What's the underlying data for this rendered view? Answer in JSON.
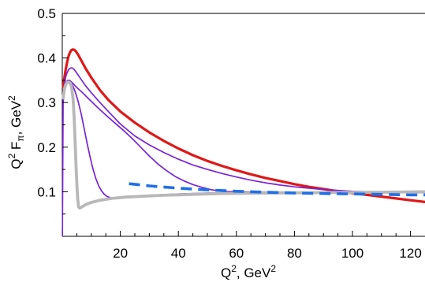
{
  "chart_data": {
    "type": "line",
    "title": "",
    "xlabel": {
      "base": "Q",
      "sup": "2",
      "rest": ", GeV",
      "unit_sup": "2"
    },
    "ylabel": {
      "base": "Q",
      "sup": "2",
      "f": " F",
      "sub": "π",
      "rest": ", GeV",
      "unit_sup": "2"
    },
    "xlim": [
      0,
      125
    ],
    "ylim": [
      0,
      0.5
    ],
    "x_ticks": [
      20,
      40,
      60,
      80,
      100,
      120
    ],
    "y_ticks": [
      0.1,
      0.2,
      0.3,
      0.4,
      0.5
    ],
    "x_tick_labels": [
      "20",
      "40",
      "60",
      "80",
      "100",
      "120"
    ],
    "y_tick_labels": [
      "0.1",
      "0.2",
      "0.3",
      "0.4",
      "0.5"
    ],
    "grid": false,
    "legend": "none",
    "series": [
      {
        "color": "#e01818",
        "width": 3.2,
        "dash": "",
        "x": [
          0.3,
          0.7,
          1.2,
          1.7,
          2.2,
          2.7,
          3.2,
          3.7,
          4.2,
          4.8,
          5.5,
          6.5,
          8,
          10,
          13,
          16,
          20,
          25,
          30,
          35,
          40,
          45,
          50,
          55,
          60,
          65,
          70,
          75,
          80,
          85,
          90,
          95,
          100,
          105,
          110,
          115,
          120,
          125
        ],
        "y": [
          0.335,
          0.355,
          0.375,
          0.392,
          0.405,
          0.413,
          0.418,
          0.419,
          0.418,
          0.414,
          0.407,
          0.395,
          0.377,
          0.356,
          0.328,
          0.305,
          0.28,
          0.255,
          0.233,
          0.214,
          0.197,
          0.182,
          0.169,
          0.158,
          0.148,
          0.139,
          0.131,
          0.124,
          0.117,
          0.111,
          0.106,
          0.101,
          0.097,
          0.093,
          0.089,
          0.085,
          0.081,
          0.077
        ]
      },
      {
        "color": "#7a22d6",
        "width": 1.7,
        "dash": "",
        "x": [
          0.3,
          0.7,
          1.2,
          1.7,
          2.2,
          2.7,
          3.3,
          4,
          5,
          6.5,
          8,
          10,
          13,
          16,
          20,
          25,
          30,
          35,
          40,
          45,
          50,
          55,
          60,
          65,
          70,
          75,
          80,
          85,
          90,
          95,
          100,
          110,
          120,
          125
        ],
        "y": [
          0.31,
          0.34,
          0.358,
          0.368,
          0.374,
          0.377,
          0.378,
          0.375,
          0.366,
          0.352,
          0.338,
          0.322,
          0.3,
          0.279,
          0.252,
          0.225,
          0.205,
          0.188,
          0.173,
          0.16,
          0.15,
          0.141,
          0.133,
          0.126,
          0.12,
          0.115,
          0.111,
          0.108,
          0.105,
          0.103,
          0.101,
          0.099,
          0.098,
          0.098
        ]
      },
      {
        "color": "#7a22d6",
        "width": 1.7,
        "dash": "",
        "x": [
          0.3,
          0.7,
          1.2,
          1.7,
          2.2,
          2.7,
          3.2,
          3.8,
          4.5,
          5.5,
          7,
          9,
          12,
          15,
          18,
          21,
          24,
          27,
          30,
          33,
          36,
          39,
          42,
          45,
          48,
          51,
          54,
          57,
          60,
          65,
          70,
          80,
          90,
          100,
          110,
          120,
          125
        ],
        "y": [
          0.315,
          0.333,
          0.344,
          0.349,
          0.35,
          0.349,
          0.346,
          0.342,
          0.337,
          0.331,
          0.322,
          0.309,
          0.29,
          0.272,
          0.255,
          0.238,
          0.22,
          0.2,
          0.18,
          0.162,
          0.147,
          0.134,
          0.124,
          0.116,
          0.11,
          0.105,
          0.102,
          0.1,
          0.1,
          0.099,
          0.099,
          0.099,
          0.099,
          0.1,
          0.1,
          0.1,
          0.1
        ]
      },
      {
        "color": "#7a22d6",
        "width": 1.7,
        "dash": "",
        "x": [
          0.3,
          0.7,
          1.2,
          1.7,
          2.2,
          2.7,
          3.2,
          3.8,
          4.5,
          5.5,
          6.5,
          7.5,
          8.5,
          9.5,
          10.5,
          11.5,
          12.5,
          13.5,
          14.5,
          15.5,
          17,
          20,
          25,
          30,
          40,
          50,
          60,
          80,
          100,
          125
        ],
        "y": [
          0.3,
          0.326,
          0.339,
          0.345,
          0.346,
          0.345,
          0.342,
          0.335,
          0.323,
          0.302,
          0.275,
          0.243,
          0.21,
          0.18,
          0.153,
          0.131,
          0.114,
          0.102,
          0.094,
          0.089,
          0.086,
          0.087,
          0.09,
          0.092,
          0.095,
          0.097,
          0.098,
          0.099,
          0.1,
          0.1
        ]
      },
      {
        "color": "#b8b8b8",
        "width": 3.8,
        "dash": "",
        "x": [
          0.3,
          0.7,
          1.2,
          1.7,
          2.2,
          2.7,
          3.2,
          3.7,
          4.1,
          4.4,
          4.7,
          5.0,
          5.3,
          5.6,
          6,
          7,
          8,
          10,
          13,
          17,
          22,
          28,
          35,
          45,
          55,
          70,
          90,
          110,
          125
        ],
        "y": [
          0.31,
          0.33,
          0.341,
          0.345,
          0.346,
          0.344,
          0.335,
          0.31,
          0.265,
          0.215,
          0.165,
          0.12,
          0.085,
          0.066,
          0.063,
          0.067,
          0.071,
          0.076,
          0.081,
          0.085,
          0.088,
          0.09,
          0.092,
          0.094,
          0.096,
          0.097,
          0.098,
          0.099,
          0.1
        ]
      },
      {
        "color": "#1f6fe8",
        "width": 3.6,
        "dash": "14,8",
        "x": [
          23,
          30,
          40,
          50,
          60,
          70,
          80,
          90,
          100,
          110,
          120,
          125
        ],
        "y": [
          0.118,
          0.113,
          0.108,
          0.104,
          0.101,
          0.099,
          0.097,
          0.096,
          0.095,
          0.094,
          0.093,
          0.093
        ]
      }
    ]
  }
}
